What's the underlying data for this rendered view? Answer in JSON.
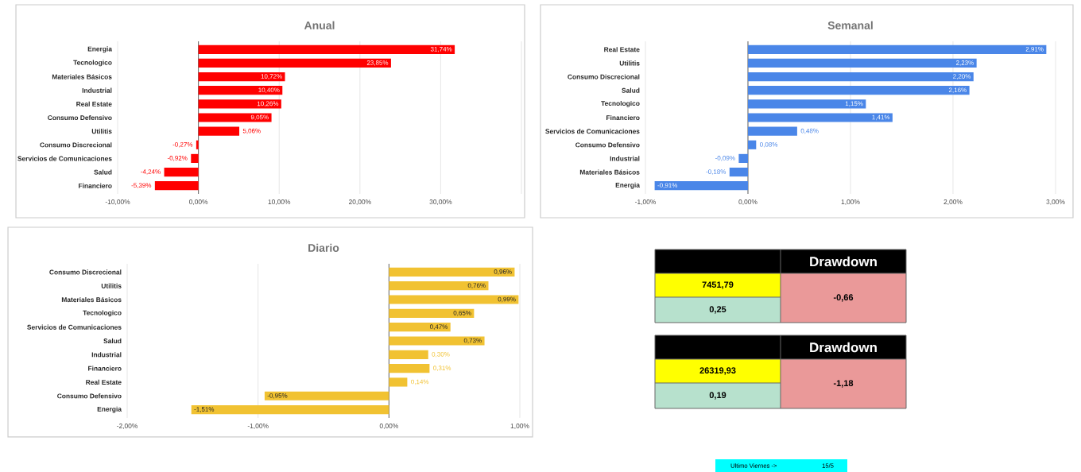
{
  "chart_data": [
    {
      "type": "bar",
      "orientation": "horizontal",
      "title": "Anual",
      "categories": [
        "Energia",
        "Tecnologico",
        "Materiales Básicos",
        "Industrial",
        "Real Estate",
        "Consumo Defensivo",
        "Utilitis",
        "Consumo Discrecional",
        "Servicios de Comunicaciones",
        "Salud",
        "Financiero"
      ],
      "values": [
        31.74,
        23.85,
        10.72,
        10.4,
        10.26,
        9.05,
        5.06,
        -0.27,
        -0.92,
        -4.24,
        -5.39
      ],
      "value_labels": [
        "31,74%",
        "23,85%",
        "10,72%",
        "10,40%",
        "10,26%",
        "9,05%",
        "5,06%",
        "-0,27%",
        "-0,92%",
        "-4,24%",
        "-5,39%"
      ],
      "color": "#ff0000",
      "xlim": [
        -10,
        40
      ],
      "xticks": [
        {
          "value": -10,
          "label": "-10,00%"
        },
        {
          "value": 0,
          "label": "0,00%"
        },
        {
          "value": 10,
          "label": "10,00%"
        },
        {
          "value": 20,
          "label": "20,00%"
        },
        {
          "value": 30,
          "label": "30,00%"
        },
        {
          "value": 40,
          "label": null
        }
      ],
      "grid": "x"
    },
    {
      "type": "bar",
      "orientation": "horizontal",
      "title": "Semanal",
      "categories": [
        "Real Estate",
        "Utilitis",
        "Consumo Discrecional",
        "Salud",
        "Tecnologico",
        "Financiero",
        "Servicios de Comunicaciones",
        "Consumo Defensivo",
        "Industrial",
        "Materiales Básicos",
        "Energia"
      ],
      "values": [
        2.91,
        2.23,
        2.2,
        2.16,
        1.15,
        1.41,
        0.48,
        0.08,
        -0.09,
        -0.18,
        -0.91
      ],
      "value_labels": [
        "2,91%",
        "2,23%",
        "2,20%",
        "2,16%",
        "1,15%",
        "1,41%",
        "0,48%",
        "0,08%",
        "-0,09%",
        "-0,18%",
        "-0,91%"
      ],
      "color": "#4a86e8",
      "xlim": [
        -1,
        3
      ],
      "xticks": [
        {
          "value": -1,
          "label": "-1,00%"
        },
        {
          "value": 0,
          "label": "0,00%"
        },
        {
          "value": 1,
          "label": "1,00%"
        },
        {
          "value": 2,
          "label": "2,00%"
        },
        {
          "value": 3,
          "label": "3,00%"
        }
      ],
      "grid": "x"
    },
    {
      "type": "bar",
      "orientation": "horizontal",
      "title": "Diario",
      "categories": [
        "Consumo Discrecional",
        "Utilitis",
        "Materiales Básicos",
        "Tecnologico",
        "Servicios de Comunicaciones",
        "Salud",
        "Industrial",
        "Financiero",
        "Real Estate",
        "Consumo Defensivo",
        "Energia"
      ],
      "values": [
        0.96,
        0.76,
        0.99,
        0.65,
        0.47,
        0.73,
        0.3,
        0.31,
        0.14,
        -0.95,
        -1.51
      ],
      "value_labels": [
        "0,96%",
        "0,76%",
        "0,99%",
        "0,65%",
        "0,47%",
        "0,73%",
        "0,30%",
        "0,31%",
        "0,14%",
        "-0,95%",
        "-1,51%"
      ],
      "color": "#f1c232",
      "xlim": [
        -2,
        1
      ],
      "xticks": [
        {
          "value": -2,
          "label": "-2,00%"
        },
        {
          "value": -1,
          "label": "-1,00%"
        },
        {
          "value": 0,
          "label": "0,00%"
        },
        {
          "value": 1,
          "label": "1,00%"
        }
      ],
      "grid": "x"
    },
    {
      "type": "other",
      "annotations": [
        "Drawdown",
        "7451,79",
        "0,25",
        "-0,66",
        "Drawdown",
        "26319,93",
        "0,19",
        "-1,18",
        "Ultimo Viernes ->",
        "15/5"
      ]
    }
  ]
}
